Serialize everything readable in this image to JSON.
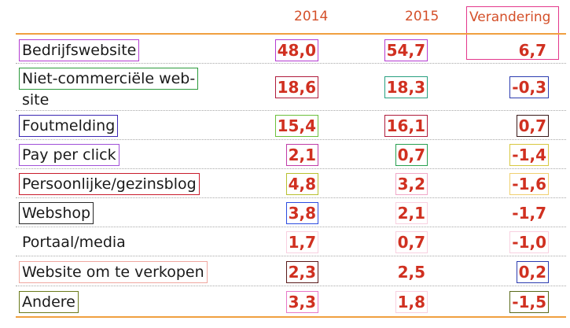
{
  "headers": {
    "y2014": "2014",
    "y2015": "2015",
    "change": "Verandering"
  },
  "rows": [
    {
      "label": "Bedrijfswebsite",
      "v2014": "48,0",
      "v2015": "54,7",
      "change": "6,7"
    },
    {
      "label": "Niet-commerciële web-",
      "label2": "site",
      "v2014": "18,6",
      "v2015": "18,3",
      "change": "-0,3"
    },
    {
      "label": "Foutmelding",
      "v2014": "15,4",
      "v2015": "16,1",
      "change": "0,7"
    },
    {
      "label": "Pay per click",
      "v2014": "2,1",
      "v2015": "0,7",
      "change": "-1,4"
    },
    {
      "label": "Persoonlijke/gezinsblog",
      "v2014": "4,8",
      "v2015": "3,2",
      "change": "-1,6"
    },
    {
      "label": "Webshop",
      "v2014": "3,8",
      "v2015": "2,1",
      "change": "-1,7"
    },
    {
      "label": "Portaal/media",
      "v2014": "1,7",
      "v2015": "0,7",
      "change": "-1,0"
    },
    {
      "label": "Website om te verkopen",
      "v2014": "2,3",
      "v2015": "2,5",
      "change": "0,2"
    },
    {
      "label": "Andere",
      "v2014": "3,3",
      "v2015": "1,8",
      "change": "-1,5"
    }
  ],
  "colors": {
    "accent": "#d03020",
    "rule": "#f0a040",
    "header": "#d4502a"
  }
}
